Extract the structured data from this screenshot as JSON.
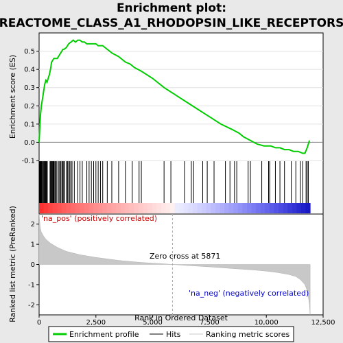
{
  "chart_data": {
    "type": "line",
    "title": "Enrichment plot:",
    "subtitle": "REACTOME_CLASS_A1_RHODOPSIN_LIKE_RECEPTORS",
    "top_panel": {
      "ylabel": "Enrichment score (ES)",
      "ylim": [
        -0.1,
        0.6
      ],
      "yticks": [
        "-0.1",
        "0.0",
        "0.1",
        "0.2",
        "0.3",
        "0.4",
        "0.5"
      ],
      "yticks_values": [
        -0.1,
        0.0,
        0.1,
        0.2,
        0.3,
        0.4,
        0.5
      ],
      "series": [
        {
          "name": "Enrichment profile",
          "color": "#00cc00",
          "x": [
            0,
            30,
            60,
            100,
            150,
            200,
            250,
            300,
            350,
            400,
            450,
            500,
            550,
            600,
            650,
            700,
            800,
            850,
            900,
            950,
            1000,
            1050,
            1100,
            1200,
            1300,
            1400,
            1500,
            1600,
            1700,
            1800,
            1900,
            2000,
            2100,
            2200,
            2300,
            2400,
            2500,
            2600,
            2700,
            2800,
            3000,
            3200,
            3500,
            3800,
            4000,
            4200,
            4500,
            5000,
            5500,
            6000,
            6500,
            7000,
            7500,
            8000,
            8500,
            8800,
            9000,
            9300,
            9600,
            9900,
            10100,
            10200,
            10400,
            10600,
            10800,
            11000,
            11200,
            11400,
            11600,
            11700,
            11800,
            11900
          ],
          "values": [
            0.0,
            0.08,
            0.15,
            0.2,
            0.24,
            0.28,
            0.32,
            0.34,
            0.33,
            0.35,
            0.37,
            0.4,
            0.44,
            0.45,
            0.46,
            0.46,
            0.46,
            0.47,
            0.48,
            0.49,
            0.5,
            0.51,
            0.51,
            0.52,
            0.54,
            0.55,
            0.56,
            0.55,
            0.56,
            0.56,
            0.55,
            0.55,
            0.54,
            0.54,
            0.54,
            0.54,
            0.54,
            0.53,
            0.53,
            0.53,
            0.51,
            0.49,
            0.47,
            0.44,
            0.43,
            0.41,
            0.39,
            0.35,
            0.3,
            0.26,
            0.22,
            0.18,
            0.14,
            0.1,
            0.07,
            0.05,
            0.03,
            0.01,
            -0.01,
            -0.02,
            -0.02,
            -0.02,
            -0.03,
            -0.03,
            -0.04,
            -0.04,
            -0.05,
            -0.05,
            -0.06,
            -0.06,
            -0.03,
            0.01
          ]
        }
      ]
    },
    "hits_panel": {
      "hit_positions": [
        30,
        60,
        90,
        120,
        150,
        190,
        220,
        250,
        270,
        300,
        330,
        360,
        480,
        510,
        540,
        570,
        600,
        620,
        640,
        660,
        700,
        730,
        780,
        850,
        900,
        950,
        1000,
        1040,
        1080,
        1120,
        1200,
        1250,
        1300,
        1350,
        1400,
        1450,
        1550,
        1700,
        1800,
        1900,
        2100,
        2200,
        2300,
        2400,
        2500,
        2600,
        2700,
        2800,
        3000,
        3200,
        3500,
        3800,
        4100,
        4400,
        4500,
        5500,
        5800,
        6400,
        6700,
        6800,
        7200,
        7400,
        7700,
        8200,
        8400,
        8600,
        8700,
        9200,
        9300,
        9800,
        10100,
        10150,
        10400,
        10600,
        10800,
        11100,
        11300,
        11500,
        11600,
        11750,
        11800,
        11850
      ]
    },
    "bottom_panel": {
      "ylabel": "Ranked list metric (PreRanked)",
      "xlabel": "Rank in Ordered Dataset",
      "ylim": [
        -2.5,
        2.5
      ],
      "yticks": [
        "-2",
        "-1",
        "0",
        "1",
        "2"
      ],
      "yticks_values": [
        -2,
        -1,
        0,
        1,
        2
      ],
      "xlim": [
        0,
        12500
      ],
      "xticks": [
        "0",
        "2,500",
        "5,000",
        "7,500",
        "10,000",
        "12,500"
      ],
      "xticks_values": [
        0,
        2500,
        5000,
        7500,
        10000,
        12500
      ],
      "metric_x": [
        0,
        50,
        100,
        200,
        300,
        500,
        800,
        1200,
        1800,
        2500,
        3500,
        4500,
        5500,
        5871,
        6500,
        7500,
        8500,
        9500,
        10000,
        10500,
        11000,
        11300,
        11500,
        11700,
        11800,
        11850,
        11900,
        11930
      ],
      "metric_y": [
        2.5,
        1.8,
        1.6,
        1.4,
        1.25,
        1.05,
        0.85,
        0.65,
        0.48,
        0.35,
        0.2,
        0.1,
        0.03,
        0.0,
        -0.05,
        -0.12,
        -0.2,
        -0.28,
        -0.33,
        -0.4,
        -0.5,
        -0.6,
        -0.75,
        -1.0,
        -1.3,
        -1.6,
        -2.0,
        -2.5
      ],
      "zero_cross_label": "Zero cross at 5871",
      "zero_cross_x": 5871,
      "pos_label": "'na_pos' (positively correlated)",
      "neg_label": "'na_neg' (negatively correlated)",
      "dataset_size": 11930
    },
    "legend": {
      "placement": "bottom",
      "items": [
        {
          "label": "Enrichment profile",
          "color": "#00cc00"
        },
        {
          "label": "Hits",
          "color": "#000000"
        },
        {
          "label": "Ranking metric scores",
          "color": "#c8c8c8"
        }
      ]
    },
    "colors": {
      "pos_label": "#cc0000",
      "neg_label": "#0000cc",
      "profile": "#00cc00"
    }
  }
}
